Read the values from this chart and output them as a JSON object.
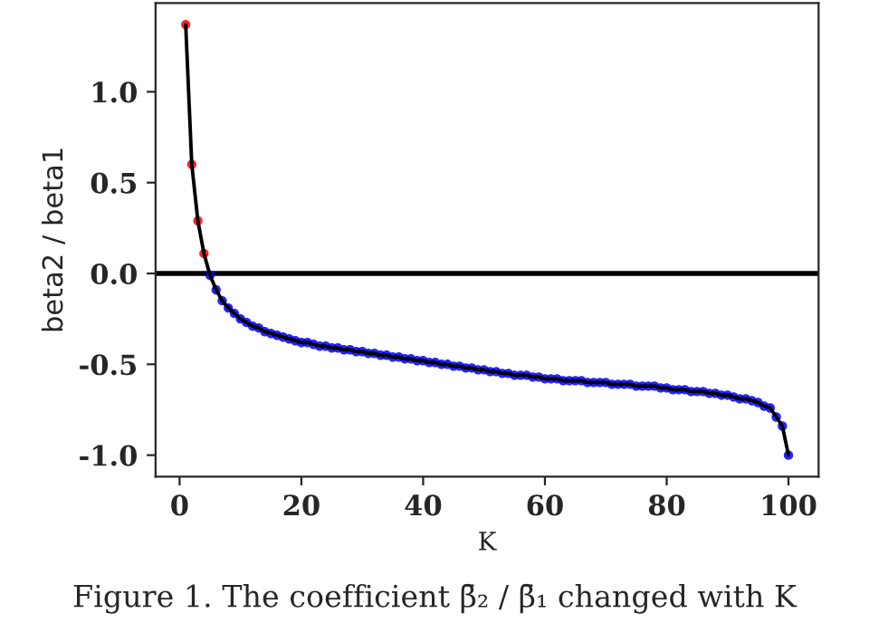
{
  "chart_data": {
    "type": "line",
    "xlabel": "K",
    "ylabel": "beta2 / beta1",
    "annotations": [
      "Figure 1. The coefficient β̄₂ / β̄₁ changed with K"
    ],
    "xlim": [
      -3.95,
      104.95
    ],
    "ylim": [
      -1.118,
      1.488
    ],
    "xticks": [
      0,
      20,
      40,
      60,
      80,
      100
    ],
    "yticks": [
      {
        "value": -1.0,
        "label": "-1.0"
      },
      {
        "value": -0.5,
        "label": "-0.5"
      },
      {
        "value": 0.0,
        "label": "0.0"
      },
      {
        "value": 0.5,
        "label": "0.5"
      },
      {
        "value": 1.0,
        "label": "1.0"
      }
    ],
    "grid": false,
    "legend": false,
    "ref_lines": [
      {
        "axis": "y",
        "value": 0,
        "color": "#000000",
        "line_style": "solid"
      }
    ],
    "series": [
      {
        "color": "#000000",
        "marker": "none",
        "line_style": "solid",
        "x": [
          1,
          2,
          3,
          4,
          5,
          6,
          7,
          8,
          9,
          10,
          11,
          12,
          13,
          14,
          15,
          16,
          17,
          18,
          19,
          20,
          21,
          22,
          23,
          24,
          25,
          26,
          27,
          28,
          29,
          30,
          31,
          32,
          33,
          34,
          35,
          36,
          37,
          38,
          39,
          40,
          41,
          42,
          43,
          44,
          45,
          46,
          47,
          48,
          49,
          50,
          51,
          52,
          53,
          54,
          55,
          56,
          57,
          58,
          59,
          60,
          61,
          62,
          63,
          64,
          65,
          66,
          67,
          68,
          69,
          70,
          71,
          72,
          73,
          74,
          75,
          76,
          77,
          78,
          79,
          80,
          81,
          82,
          83,
          84,
          85,
          86,
          87,
          88,
          89,
          90,
          91,
          92,
          93,
          94,
          95,
          96,
          97,
          98,
          99,
          100
        ],
        "values": [
          1.37,
          0.6,
          0.29,
          0.11,
          -0.01,
          -0.09,
          -0.15,
          -0.19,
          -0.22,
          -0.25,
          -0.27,
          -0.29,
          -0.3,
          -0.32,
          -0.33,
          -0.34,
          -0.35,
          -0.36,
          -0.37,
          -0.38,
          -0.38,
          -0.39,
          -0.4,
          -0.4,
          -0.41,
          -0.41,
          -0.42,
          -0.42,
          -0.43,
          -0.43,
          -0.44,
          -0.44,
          -0.45,
          -0.45,
          -0.46,
          -0.46,
          -0.47,
          -0.47,
          -0.48,
          -0.48,
          -0.49,
          -0.49,
          -0.5,
          -0.5,
          -0.51,
          -0.51,
          -0.52,
          -0.52,
          -0.53,
          -0.53,
          -0.54,
          -0.54,
          -0.55,
          -0.55,
          -0.56,
          -0.56,
          -0.56,
          -0.57,
          -0.57,
          -0.58,
          -0.58,
          -0.58,
          -0.59,
          -0.59,
          -0.59,
          -0.59,
          -0.6,
          -0.6,
          -0.6,
          -0.6,
          -0.61,
          -0.61,
          -0.61,
          -0.61,
          -0.62,
          -0.62,
          -0.62,
          -0.62,
          -0.63,
          -0.63,
          -0.64,
          -0.64,
          -0.64,
          -0.65,
          -0.65,
          -0.65,
          -0.66,
          -0.66,
          -0.67,
          -0.67,
          -0.68,
          -0.69,
          -0.69,
          -0.7,
          -0.71,
          -0.73,
          -0.74,
          -0.79,
          -0.84,
          -1.0
        ]
      },
      {
        "type": "scatter",
        "color": "#ff0000",
        "marker": "circle",
        "x": [
          1,
          2,
          3,
          4
        ],
        "values": [
          1.37,
          0.6,
          0.29,
          0.11
        ]
      },
      {
        "type": "scatter",
        "color": "#0000ff",
        "marker": "circle",
        "x": [
          5,
          6,
          7,
          8,
          9,
          10,
          11,
          12,
          13,
          14,
          15,
          16,
          17,
          18,
          19,
          20,
          21,
          22,
          23,
          24,
          25,
          26,
          27,
          28,
          29,
          30,
          31,
          32,
          33,
          34,
          35,
          36,
          37,
          38,
          39,
          40,
          41,
          42,
          43,
          44,
          45,
          46,
          47,
          48,
          49,
          50,
          51,
          52,
          53,
          54,
          55,
          56,
          57,
          58,
          59,
          60,
          61,
          62,
          63,
          64,
          65,
          66,
          67,
          68,
          69,
          70,
          71,
          72,
          73,
          74,
          75,
          76,
          77,
          78,
          79,
          80,
          81,
          82,
          83,
          84,
          85,
          86,
          87,
          88,
          89,
          90,
          91,
          92,
          93,
          94,
          95,
          96,
          97,
          98,
          99,
          100
        ],
        "values": [
          -0.01,
          -0.09,
          -0.15,
          -0.19,
          -0.22,
          -0.25,
          -0.27,
          -0.29,
          -0.3,
          -0.32,
          -0.33,
          -0.34,
          -0.35,
          -0.36,
          -0.37,
          -0.38,
          -0.38,
          -0.39,
          -0.4,
          -0.4,
          -0.41,
          -0.41,
          -0.42,
          -0.42,
          -0.43,
          -0.43,
          -0.44,
          -0.44,
          -0.45,
          -0.45,
          -0.46,
          -0.46,
          -0.47,
          -0.47,
          -0.48,
          -0.48,
          -0.49,
          -0.49,
          -0.5,
          -0.5,
          -0.51,
          -0.51,
          -0.52,
          -0.52,
          -0.53,
          -0.53,
          -0.54,
          -0.54,
          -0.55,
          -0.55,
          -0.56,
          -0.56,
          -0.56,
          -0.57,
          -0.57,
          -0.58,
          -0.58,
          -0.58,
          -0.59,
          -0.59,
          -0.59,
          -0.59,
          -0.6,
          -0.6,
          -0.6,
          -0.6,
          -0.61,
          -0.61,
          -0.61,
          -0.61,
          -0.62,
          -0.62,
          -0.62,
          -0.62,
          -0.63,
          -0.63,
          -0.64,
          -0.64,
          -0.64,
          -0.65,
          -0.65,
          -0.65,
          -0.66,
          -0.66,
          -0.67,
          -0.67,
          -0.68,
          -0.69,
          -0.69,
          -0.7,
          -0.71,
          -0.73,
          -0.74,
          -0.79,
          -0.84,
          -1.0
        ]
      }
    ]
  }
}
